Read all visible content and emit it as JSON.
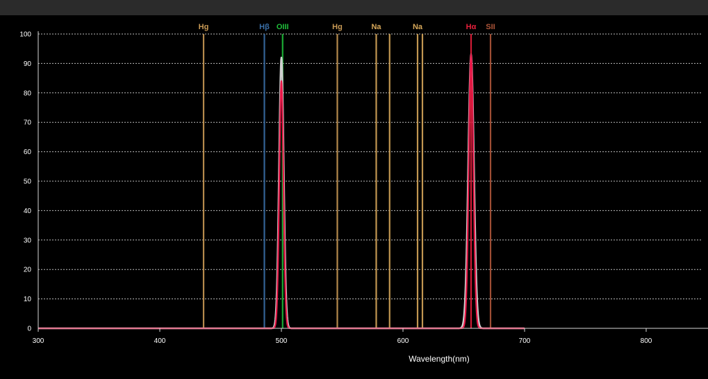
{
  "chart_data": {
    "type": "line",
    "title": "",
    "xlabel": "Wavelength(nm)",
    "ylabel": "",
    "xlim": [
      300,
      850
    ],
    "ylim": [
      0,
      100
    ],
    "x_ticks": [
      300,
      400,
      500,
      600,
      700,
      800
    ],
    "y_ticks": [
      0,
      10,
      20,
      30,
      40,
      50,
      60,
      70,
      80,
      90,
      100
    ],
    "grid": "horizontal dashed",
    "emission_lines": [
      {
        "label": "Hg",
        "wavelength": 436,
        "color": "#c99a55"
      },
      {
        "label": "Hβ",
        "wavelength": 486,
        "color": "#3a6fa8"
      },
      {
        "label": "OIII",
        "wavelength": 501,
        "color": "#1fbf3a"
      },
      {
        "label": "Hg",
        "wavelength": 546,
        "color": "#c99a55"
      },
      {
        "label": "Na",
        "wavelength": 578,
        "color": "#d7a85a"
      },
      {
        "label": "",
        "wavelength": 589,
        "color": "#d7a85a"
      },
      {
        "label": "Na",
        "wavelength": 612,
        "color": "#d7a85a"
      },
      {
        "label": "",
        "wavelength": 616,
        "color": "#d7a85a"
      },
      {
        "label": "Hα",
        "wavelength": 656,
        "color": "#e8203c"
      },
      {
        "label": "SII",
        "wavelength": 672,
        "color": "#b0563a"
      }
    ],
    "series": [
      {
        "color": "#d0d0d0",
        "peaks": [
          {
            "center": 500,
            "peak": 92,
            "fwhm": 4.5
          },
          {
            "center": 656,
            "peak": 93,
            "fwhm": 5.5
          }
        ]
      },
      {
        "color": "#e81848",
        "peaks": [
          {
            "center": 500,
            "peak": 84,
            "fwhm": 4
          },
          {
            "center": 656,
            "peak": 93,
            "fwhm": 4.5
          }
        ]
      }
    ],
    "line_range": [
      300,
      700
    ]
  }
}
